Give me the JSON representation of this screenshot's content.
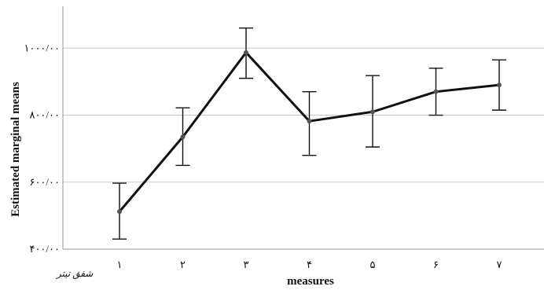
{
  "chart_data": {
    "type": "line",
    "title": "",
    "xlabel": "measures",
    "ylabel": "Estimated marginal means",
    "categories": [
      "۱",
      "۲",
      "۳",
      "۴",
      "۵",
      "۶",
      "۷"
    ],
    "yticks": [
      {
        "value": 400,
        "label": "۴۰۰/۰۰"
      },
      {
        "value": 600,
        "label": "۶۰۰/۰۰"
      },
      {
        "value": 800,
        "label": "۸۰۰/۰۰"
      },
      {
        "value": 1000,
        "label": "۱۰۰۰/۰۰"
      }
    ],
    "ylim": [
      400,
      1125
    ],
    "grid": true,
    "series": [
      {
        "values": [
          512,
          735,
          987,
          782,
          810,
          870,
          890
        ],
        "error_low": [
          430,
          650,
          910,
          680,
          705,
          800,
          815
        ],
        "error_high": [
          597,
          822,
          1060,
          870,
          918,
          940,
          965
        ]
      }
    ],
    "annotation": "شفق تیتر"
  }
}
